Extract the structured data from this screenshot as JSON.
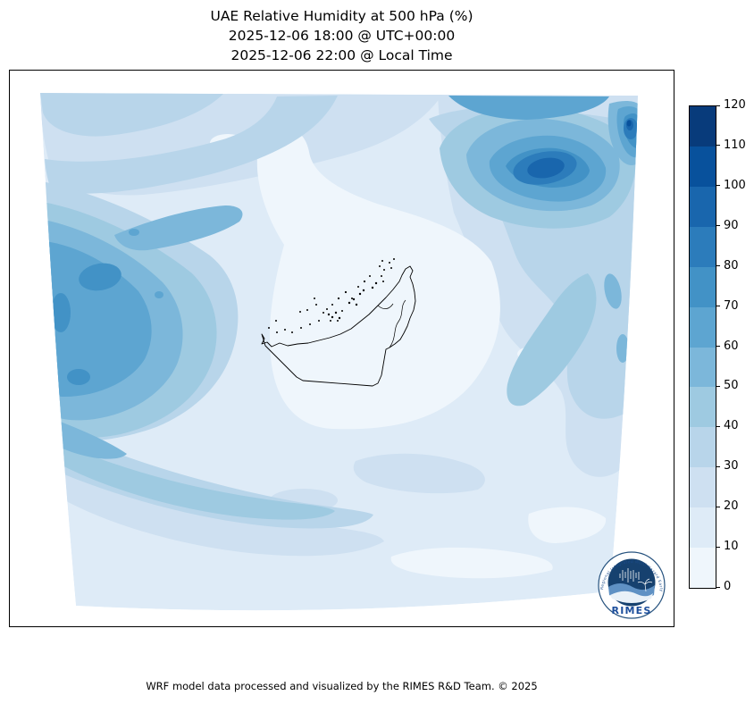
{
  "title": {
    "line1": "UAE Relative Humidity at 500 hPa (%)",
    "line2": "2025-12-06 18:00 @ UTC+00:00",
    "line3": "2025-12-06 22:00 @ Local Time"
  },
  "footer": "WRF model data processed and visualized by the RIMES R&D Team. © 2025",
  "colorbar": {
    "min": 0,
    "max": 120,
    "step": 10,
    "ticks": [
      0,
      10,
      20,
      30,
      40,
      50,
      60,
      70,
      80,
      90,
      100,
      110,
      120
    ],
    "colors": [
      "#eff6fc",
      "#deebf7",
      "#cee0f1",
      "#b8d5ea",
      "#9ecae1",
      "#7cb7da",
      "#5da5d1",
      "#4292c6",
      "#2c7cbb",
      "#1966ad",
      "#08519c",
      "#083b7b"
    ],
    "position": "right"
  },
  "logo": {
    "label": "RIMES",
    "ring_text": "Regional Integrated Multi-Hazard Early Warning System"
  }
}
